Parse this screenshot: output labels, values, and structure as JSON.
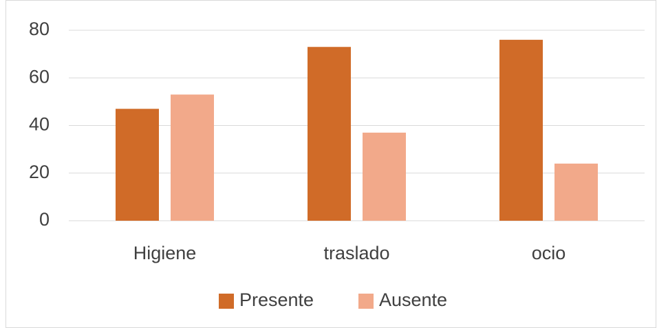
{
  "chart_data": {
    "type": "bar",
    "categories": [
      "Higiene",
      "traslado",
      "ocio"
    ],
    "series": [
      {
        "name": "Presente",
        "color": "#d06b28",
        "values": [
          47,
          73,
          76
        ]
      },
      {
        "name": "Ausente",
        "color": "#f2a98a",
        "values": [
          53,
          37,
          24
        ]
      }
    ],
    "ylim": [
      0,
      80
    ],
    "yticks": [
      0,
      20,
      40,
      60,
      80
    ],
    "grid": true,
    "legend": "bottom"
  }
}
